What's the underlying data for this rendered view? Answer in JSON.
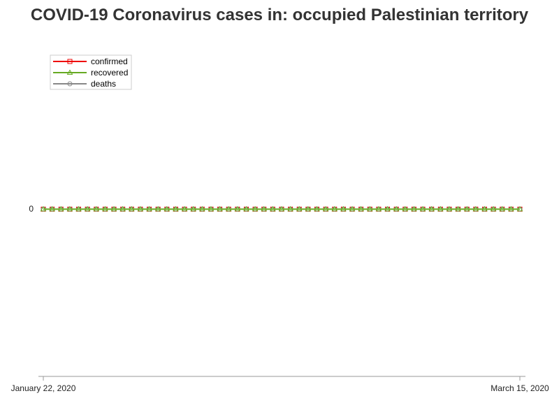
{
  "chart_data": {
    "type": "line",
    "title": "COVID-19 Coronavirus cases in: occupied Palestinian territory",
    "xlabel": "",
    "ylabel": "",
    "x_start": "January 22, 2020",
    "x_end": "March 15, 2020",
    "x_tick_labels": [
      "January 22, 2020",
      "March 15, 2020"
    ],
    "y_tick_labels": [
      "0"
    ],
    "ylim": [
      -1,
      1
    ],
    "grid": false,
    "legend_position": "top-left",
    "series": [
      {
        "name": "confirmed",
        "color": "#ee0000",
        "marker": "square",
        "values": [
          0,
          0,
          0,
          0,
          0,
          0,
          0,
          0,
          0,
          0,
          0,
          0,
          0,
          0,
          0,
          0,
          0,
          0,
          0,
          0,
          0,
          0,
          0,
          0,
          0,
          0,
          0,
          0,
          0,
          0,
          0,
          0,
          0,
          0,
          0,
          0,
          0,
          0,
          0,
          0,
          0,
          0,
          0,
          0,
          0,
          0,
          0,
          0,
          0,
          0,
          0,
          0,
          0,
          0,
          0
        ]
      },
      {
        "name": "recovered",
        "color": "#66aa22",
        "marker": "triangle",
        "values": [
          0,
          0,
          0,
          0,
          0,
          0,
          0,
          0,
          0,
          0,
          0,
          0,
          0,
          0,
          0,
          0,
          0,
          0,
          0,
          0,
          0,
          0,
          0,
          0,
          0,
          0,
          0,
          0,
          0,
          0,
          0,
          0,
          0,
          0,
          0,
          0,
          0,
          0,
          0,
          0,
          0,
          0,
          0,
          0,
          0,
          0,
          0,
          0,
          0,
          0,
          0,
          0,
          0,
          0,
          0
        ]
      },
      {
        "name": "deaths",
        "color": "#888888",
        "marker": "circle",
        "values": [
          0,
          0,
          0,
          0,
          0,
          0,
          0,
          0,
          0,
          0,
          0,
          0,
          0,
          0,
          0,
          0,
          0,
          0,
          0,
          0,
          0,
          0,
          0,
          0,
          0,
          0,
          0,
          0,
          0,
          0,
          0,
          0,
          0,
          0,
          0,
          0,
          0,
          0,
          0,
          0,
          0,
          0,
          0,
          0,
          0,
          0,
          0,
          0,
          0,
          0,
          0,
          0,
          0,
          0,
          0
        ]
      }
    ]
  }
}
